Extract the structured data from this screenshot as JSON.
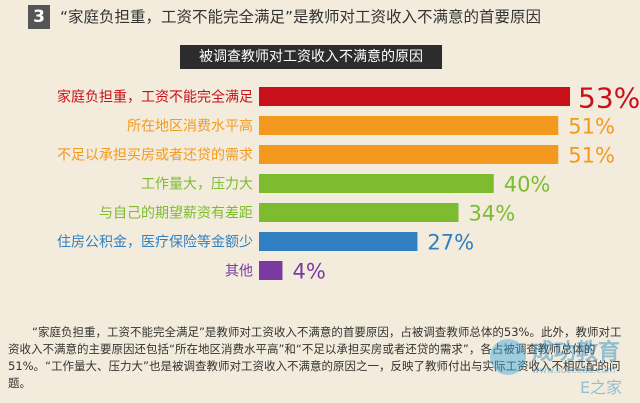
{
  "header": {
    "number": "3",
    "title": "“家庭负担重，工资不能完全满足”是教师对工资收入不满意的首要原因"
  },
  "chart_data": {
    "type": "bar",
    "orientation": "horizontal",
    "title": "被调查教师对工资收入不满意的原因",
    "categories": [
      "家庭负担重，工资不能完全满足",
      "所在地区消费水平高",
      "不足以承担买房或者还贷的需求",
      "工作量大，压力大",
      "与自己的期望薪资有差距",
      "住房公积金，医疗保险等金额少",
      "其他"
    ],
    "values": [
      53,
      51,
      51,
      40,
      34,
      27,
      4
    ],
    "value_labels": [
      "53%",
      "51%",
      "51%",
      "40%",
      "34%",
      "27%",
      "4%"
    ],
    "colors": [
      "#c8101a",
      "#f39a1e",
      "#f39a1e",
      "#7dbb2f",
      "#7dbb2f",
      "#2f7fc1",
      "#7b3aa0"
    ],
    "label_colors": [
      "#c8101a",
      "#f39a1e",
      "#f39a1e",
      "#7dbb2f",
      "#7dbb2f",
      "#2f7fc1",
      "#7b3aa0"
    ],
    "xlim": [
      0,
      53
    ]
  },
  "footnote": "“家庭负担重，工资不能完全满足”是教师对工资收入不满意的首要原因，占被调查教师总体的53%。此外，教师对工资收入不满意的主要原因还包括“所在地区消费水平高”和“不足以承担买房或者还贷的需求”，各占被调查教师总体的51%。“工作量大、压力大”也是被调查教师对工资收入不满意的原因之一，反映了教师付出与实际工资收入不相匹配的问题。",
  "watermark": {
    "brand": "成功教育",
    "url": "www.succedu.com",
    "corner": "E之家"
  }
}
